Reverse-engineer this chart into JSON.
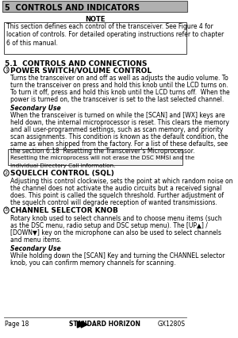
{
  "title": "5  CONTROLS AND INDICATORS",
  "note_label": "NOTE",
  "note_text_lines": [
    "This section defines each control of the transceiver. See Figure 4 for",
    "location of controls. For detailed operating instructions refer to chapter",
    "6 of this manual."
  ],
  "section_51": "5.1  CONTROLS AND CONNECTIONS",
  "item1_header": "POWER SWITCH/VOLUME CONTROL",
  "item1_body": [
    "Turns the transceiver on and off as well as adjusts the audio volume. To",
    "turn the transceiver on press and hold this knob until the LCD turns on.",
    "To turn it off, press and hold this knob until the LCD turns off.  When the",
    "power is turned on, the transceiver is set to the last selected channel."
  ],
  "item1_sec_header": "Secondary Use",
  "item1_sec_body": [
    "When the transceiver is turned on while the [SCAN] and [WX] keys are",
    "held down, the internal microprocessor is reset. This clears the memory",
    "and all user-programmed settings, such as scan memory, and priority",
    "scan assignments. This condition is known as the default condition, the",
    "same as when shipped from the factory. For a list of these defaults, see",
    "the section 6.18  Resetting the Transceiver’s Microprocessor."
  ],
  "note2_lines": [
    "Resetting the microprocess will not erase the DSC MMSI and the",
    "Individual Directory Call information."
  ],
  "item2_header": "SQUELCH CONTROL (SQL)",
  "item2_body": [
    "Adjusting this control clockwise, sets the point at which random noise on",
    "the channel does not activate the audio circuits but a received signal",
    "does. This point is called the squelch threshold. Further adjustment of",
    "the squelch control will degrade reception of wanted transmissions."
  ],
  "item3_header": "CHANNEL SELECTOR KNOB",
  "item3_body": [
    "Rotary knob used to select channels and to choose menu items (such",
    "as the DSC menu, radio setup and DSC setup menu). The [UP▲] /",
    "[DOWN▼] key on the microphone can also be used to select channels",
    "and menu items."
  ],
  "item3_sec_header": "Secondary Use",
  "item3_sec_body": [
    "While holding down the [SCAN] Key and turning the CHANNEL selector",
    "knob, you can confirm memory channels for scanning."
  ],
  "footer_left": "Page 18",
  "footer_center": "STANDARD HORIZON",
  "footer_right": "GX1280S",
  "bg_color": "#ffffff",
  "header_bg": "#b0b0b0",
  "text_color": "#000000"
}
